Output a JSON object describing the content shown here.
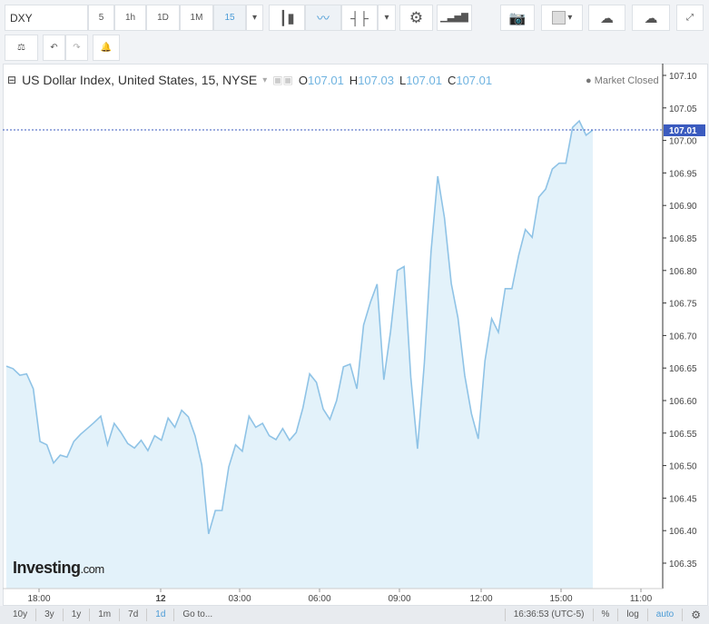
{
  "toolbar": {
    "symbol": "DXY",
    "intervals": [
      "5",
      "1h",
      "1D",
      "1M",
      "15"
    ],
    "active_interval": "15"
  },
  "legend": {
    "title": "US Dollar Index, United States, 15, NYSE",
    "o_label": "O",
    "o": "107.01",
    "h_label": "H",
    "h": "107.03",
    "l_label": "L",
    "l": "107.01",
    "c_label": "C",
    "c": "107.01",
    "status": "Market Closed"
  },
  "brand": "Investing.com",
  "bottom": {
    "ranges": [
      "10y",
      "3y",
      "1y",
      "1m",
      "7d",
      "1d"
    ],
    "active_range": "1d",
    "goto": "Go to...",
    "time": "16:36:53 (UTC-5)",
    "percent": "%",
    "log": "log",
    "auto": "auto"
  },
  "colors": {
    "line": "#8fc3e6",
    "fill": "#e3f2fa",
    "accent": "#4a9bd6",
    "price_line": "#3b5bbf"
  },
  "chart_data": {
    "type": "area",
    "ylim": [
      106.32,
      107.12
    ],
    "y_ticks": [
      "107.10",
      "107.05",
      "107.00",
      "106.95",
      "106.90",
      "106.85",
      "106.80",
      "106.75",
      "106.70",
      "106.65",
      "106.60",
      "106.55",
      "106.50",
      "106.45",
      "106.40",
      "106.35"
    ],
    "x_ticks": [
      "18:00",
      "12",
      "03:00",
      "06:00",
      "09:00",
      "12:00",
      "15:00",
      "11:00"
    ],
    "last_price": "107.01",
    "values": [
      106.653,
      106.649,
      106.639,
      106.641,
      106.618,
      106.537,
      106.532,
      106.504,
      106.516,
      106.513,
      106.537,
      106.548,
      106.557,
      106.566,
      106.576,
      106.532,
      106.565,
      106.551,
      106.534,
      106.527,
      106.539,
      106.523,
      106.546,
      106.539,
      106.573,
      106.559,
      106.585,
      106.575,
      106.546,
      106.501,
      106.395,
      106.431,
      106.431,
      106.498,
      106.532,
      106.522,
      106.576,
      106.559,
      106.565,
      106.546,
      106.54,
      106.557,
      106.539,
      106.551,
      106.589,
      106.641,
      106.628,
      106.587,
      106.571,
      106.6,
      106.652,
      106.656,
      106.618,
      106.716,
      106.751,
      106.779,
      106.632,
      106.706,
      106.8,
      106.806,
      106.636,
      106.526,
      106.657,
      106.829,
      106.945,
      106.881,
      106.78,
      106.727,
      106.639,
      106.58,
      106.541,
      106.661,
      106.726,
      106.705,
      106.772,
      106.772,
      106.823,
      106.863,
      106.851,
      106.913,
      106.925,
      106.956,
      106.965,
      106.965,
      107.02,
      107.03,
      107.008,
      107.016
    ]
  }
}
